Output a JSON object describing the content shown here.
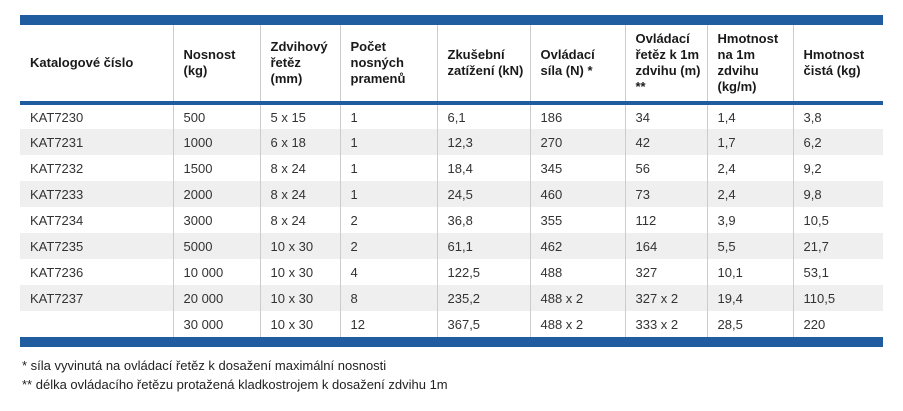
{
  "colors": {
    "accent_blue": "#1F5CA0",
    "stripe_gray": "#efefef",
    "grid_gray": "#cccccc"
  },
  "table": {
    "columns": [
      "Katalogové číslo",
      "Nosnost (kg)",
      "Zdvihový řetěz (mm)",
      "Počet nosných pramenů",
      "Zkušební zatížení (kN)",
      "Ovládací síla (N) *",
      "Ovládací řetěz k 1m zdvihu (m) **",
      "Hmotnost na 1m zdvihu (kg/m)",
      "Hmotnost čistá (kg)"
    ],
    "rows": [
      [
        "KAT7230",
        "500",
        "5 x 15",
        "1",
        "6,1",
        "186",
        "34",
        "1,4",
        "3,8"
      ],
      [
        "KAT7231",
        "1000",
        "6 x 18",
        "1",
        "12,3",
        "270",
        "42",
        "1,7",
        "6,2"
      ],
      [
        "KAT7232",
        "1500",
        "8 x 24",
        "1",
        "18,4",
        "345",
        "56",
        "2,4",
        "9,2"
      ],
      [
        "KAT7233",
        "2000",
        "8 x 24",
        "1",
        "24,5",
        "460",
        "73",
        "2,4",
        "9,8"
      ],
      [
        "KAT7234",
        "3000",
        "8 x 24",
        "2",
        "36,8",
        "355",
        "112",
        "3,9",
        "10,5"
      ],
      [
        "KAT7235",
        "5000",
        "10 x 30",
        "2",
        "61,1",
        "462",
        "164",
        "5,5",
        "21,7"
      ],
      [
        "KAT7236",
        "10 000",
        "10 x 30",
        "4",
        "122,5",
        "488",
        "327",
        "10,1",
        "53,1"
      ],
      [
        "KAT7237",
        "20 000",
        "10 x 30",
        "8",
        "235,2",
        "488 x 2",
        "327 x 2",
        "19,4",
        "110,5"
      ],
      [
        "",
        "30 000",
        "10 x 30",
        "12",
        "367,5",
        "488 x 2",
        "333 x 2",
        "28,5",
        "220"
      ]
    ]
  },
  "footnotes": [
    "* síla vyvinutá na ovládací řetěz k dosažení maximální nosnosti",
    "** délka ovládacího řetězu protažená kladkostrojem k dosažení zdvihu 1m"
  ]
}
